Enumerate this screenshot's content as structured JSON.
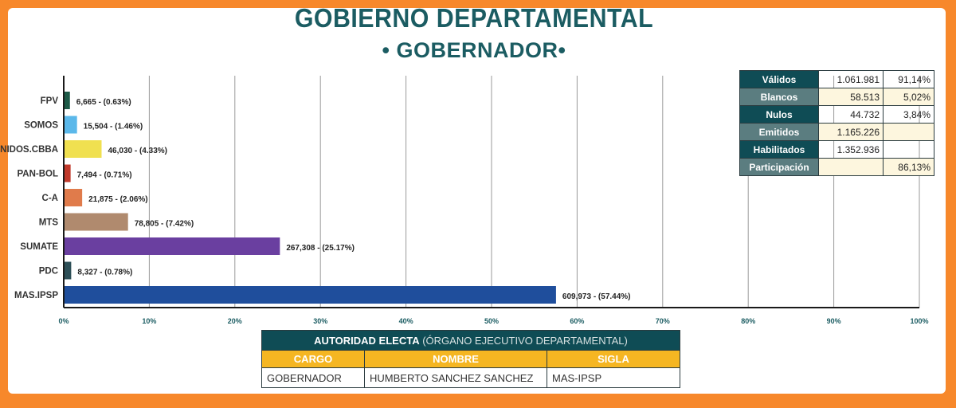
{
  "header": {
    "title": "GOBIERNO DEPARTAMENTAL",
    "subtitle": "• GOBERNADOR•"
  },
  "chart_data": {
    "type": "bar",
    "orientation": "horizontal",
    "categories": [
      "FPV",
      "SOMOS",
      "UNIDOS.CBBA",
      "PAN-BOL",
      "C-A",
      "MTS",
      "SUMATE",
      "PDC",
      "MAS.IPSP"
    ],
    "values": [
      0.63,
      1.46,
      4.33,
      0.71,
      2.06,
      7.42,
      25.17,
      0.78,
      57.44
    ],
    "data_labels": [
      "6,665 - (0.63%)",
      "15,504 - (1.46%)",
      "46,030 - (4.33%)",
      "7,494 - (0.71%)",
      "21,875 - (2.06%)",
      "78,805 - (7.42%)",
      "267,308 - (25.17%)",
      "8,327 - (0.78%)",
      "609,973 - (57.44%)"
    ],
    "colors": [
      "#1d5a47",
      "#5bb8ea",
      "#f0e050",
      "#c0392b",
      "#e07b4b",
      "#b08a6e",
      "#6a3fa0",
      "#2d4f57",
      "#1f4e9c"
    ],
    "xlim": [
      0,
      100
    ],
    "xticks": [
      0,
      10,
      20,
      30,
      40,
      50,
      60,
      70,
      80,
      90,
      100
    ],
    "xtick_labels": [
      "0%",
      "10%",
      "20%",
      "30%",
      "40%",
      "50%",
      "60%",
      "70%",
      "80%",
      "90%",
      "100%"
    ],
    "grid": true
  },
  "stats": {
    "rows": [
      {
        "label": "Válidos",
        "value": "1.061.981",
        "percent": "91,14%"
      },
      {
        "label": "Blancos",
        "value": "58.513",
        "percent": "5,02%"
      },
      {
        "label": "Nulos",
        "value": "44.732",
        "percent": "3,84%"
      },
      {
        "label": "Emitidos",
        "value": "1.165.226",
        "percent": ""
      },
      {
        "label": "Habilitados",
        "value": "1.352.936",
        "percent": ""
      },
      {
        "label": "Participación",
        "value": "",
        "percent": "86,13%"
      }
    ]
  },
  "authority": {
    "title": "AUTORIDAD ELECTA",
    "subtitle": "(ÓRGANO EJECUTIVO DEPARTAMENTAL)",
    "columns": [
      "CARGO",
      "NOMBRE",
      "SIGLA"
    ],
    "row": [
      "GOBERNADOR",
      "HUMBERTO SANCHEZ SANCHEZ",
      "MAS-IPSP"
    ]
  }
}
